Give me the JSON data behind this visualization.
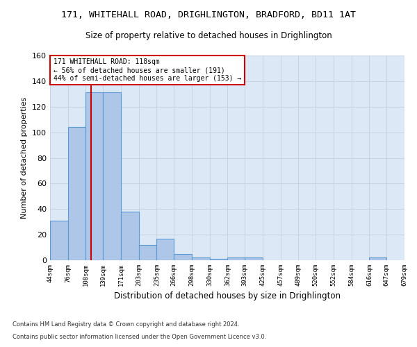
{
  "title_line1": "171, WHITEHALL ROAD, DRIGHLINGTON, BRADFORD, BD11 1AT",
  "title_line2": "Size of property relative to detached houses in Drighlington",
  "xlabel": "Distribution of detached houses by size in Drighlington",
  "ylabel": "Number of detached properties",
  "bin_labels": [
    "44sqm",
    "76sqm",
    "108sqm",
    "139sqm",
    "171sqm",
    "203sqm",
    "235sqm",
    "266sqm",
    "298sqm",
    "330sqm",
    "362sqm",
    "393sqm",
    "425sqm",
    "457sqm",
    "489sqm",
    "520sqm",
    "552sqm",
    "584sqm",
    "616sqm",
    "647sqm",
    "679sqm"
  ],
  "bar_values": [
    31,
    104,
    131,
    131,
    38,
    12,
    17,
    5,
    2,
    1,
    2,
    2,
    0,
    0,
    0,
    0,
    0,
    0,
    2,
    0,
    0
  ],
  "bar_color": "#aec6e8",
  "bar_edgecolor": "#5b9bd5",
  "bar_linewidth": 0.8,
  "property_sqm": 118,
  "redline_color": "#cc0000",
  "annotation_line1": "171 WHITEHALL ROAD: 118sqm",
  "annotation_line2": "← 56% of detached houses are smaller (191)",
  "annotation_line3": "44% of semi-detached houses are larger (153) →",
  "annotation_box_edgecolor": "#cc0000",
  "annotation_box_facecolor": "#ffffff",
  "ylim": [
    0,
    160
  ],
  "yticks": [
    0,
    20,
    40,
    60,
    80,
    100,
    120,
    140,
    160
  ],
  "grid_color": "#c8d4e0",
  "background_color": "#dce8f5",
  "footer_line1": "Contains HM Land Registry data © Crown copyright and database right 2024.",
  "footer_line2": "Contains public sector information licensed under the Open Government Licence v3.0."
}
